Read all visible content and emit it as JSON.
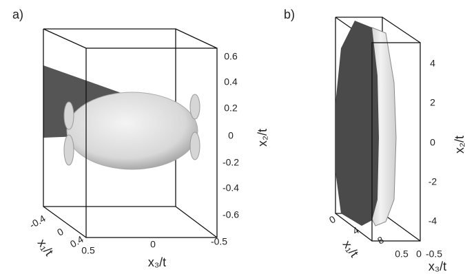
{
  "panels": [
    {
      "label": "a)",
      "x2": {
        "title": "x₂/t",
        "ticks": [
          0.6,
          0.4,
          0.2,
          0,
          -0.2,
          -0.4,
          -0.6
        ]
      },
      "x1": {
        "title": "x₁/t",
        "ticks": [
          -0.4,
          0,
          0.4
        ]
      },
      "x3": {
        "title": "x₃/t",
        "ticks": [
          0.5,
          0,
          -0.5
        ]
      }
    },
    {
      "label": "b)",
      "x2": {
        "title": "x₂/t",
        "ticks": [
          4,
          2,
          0,
          -2,
          -4
        ]
      },
      "x1": {
        "title": "x₁/t",
        "ticks": [
          0,
          4,
          8
        ]
      },
      "x3": {
        "title": "x₃/t",
        "ticks": [
          0.5,
          0,
          -0.5
        ]
      }
    }
  ]
}
